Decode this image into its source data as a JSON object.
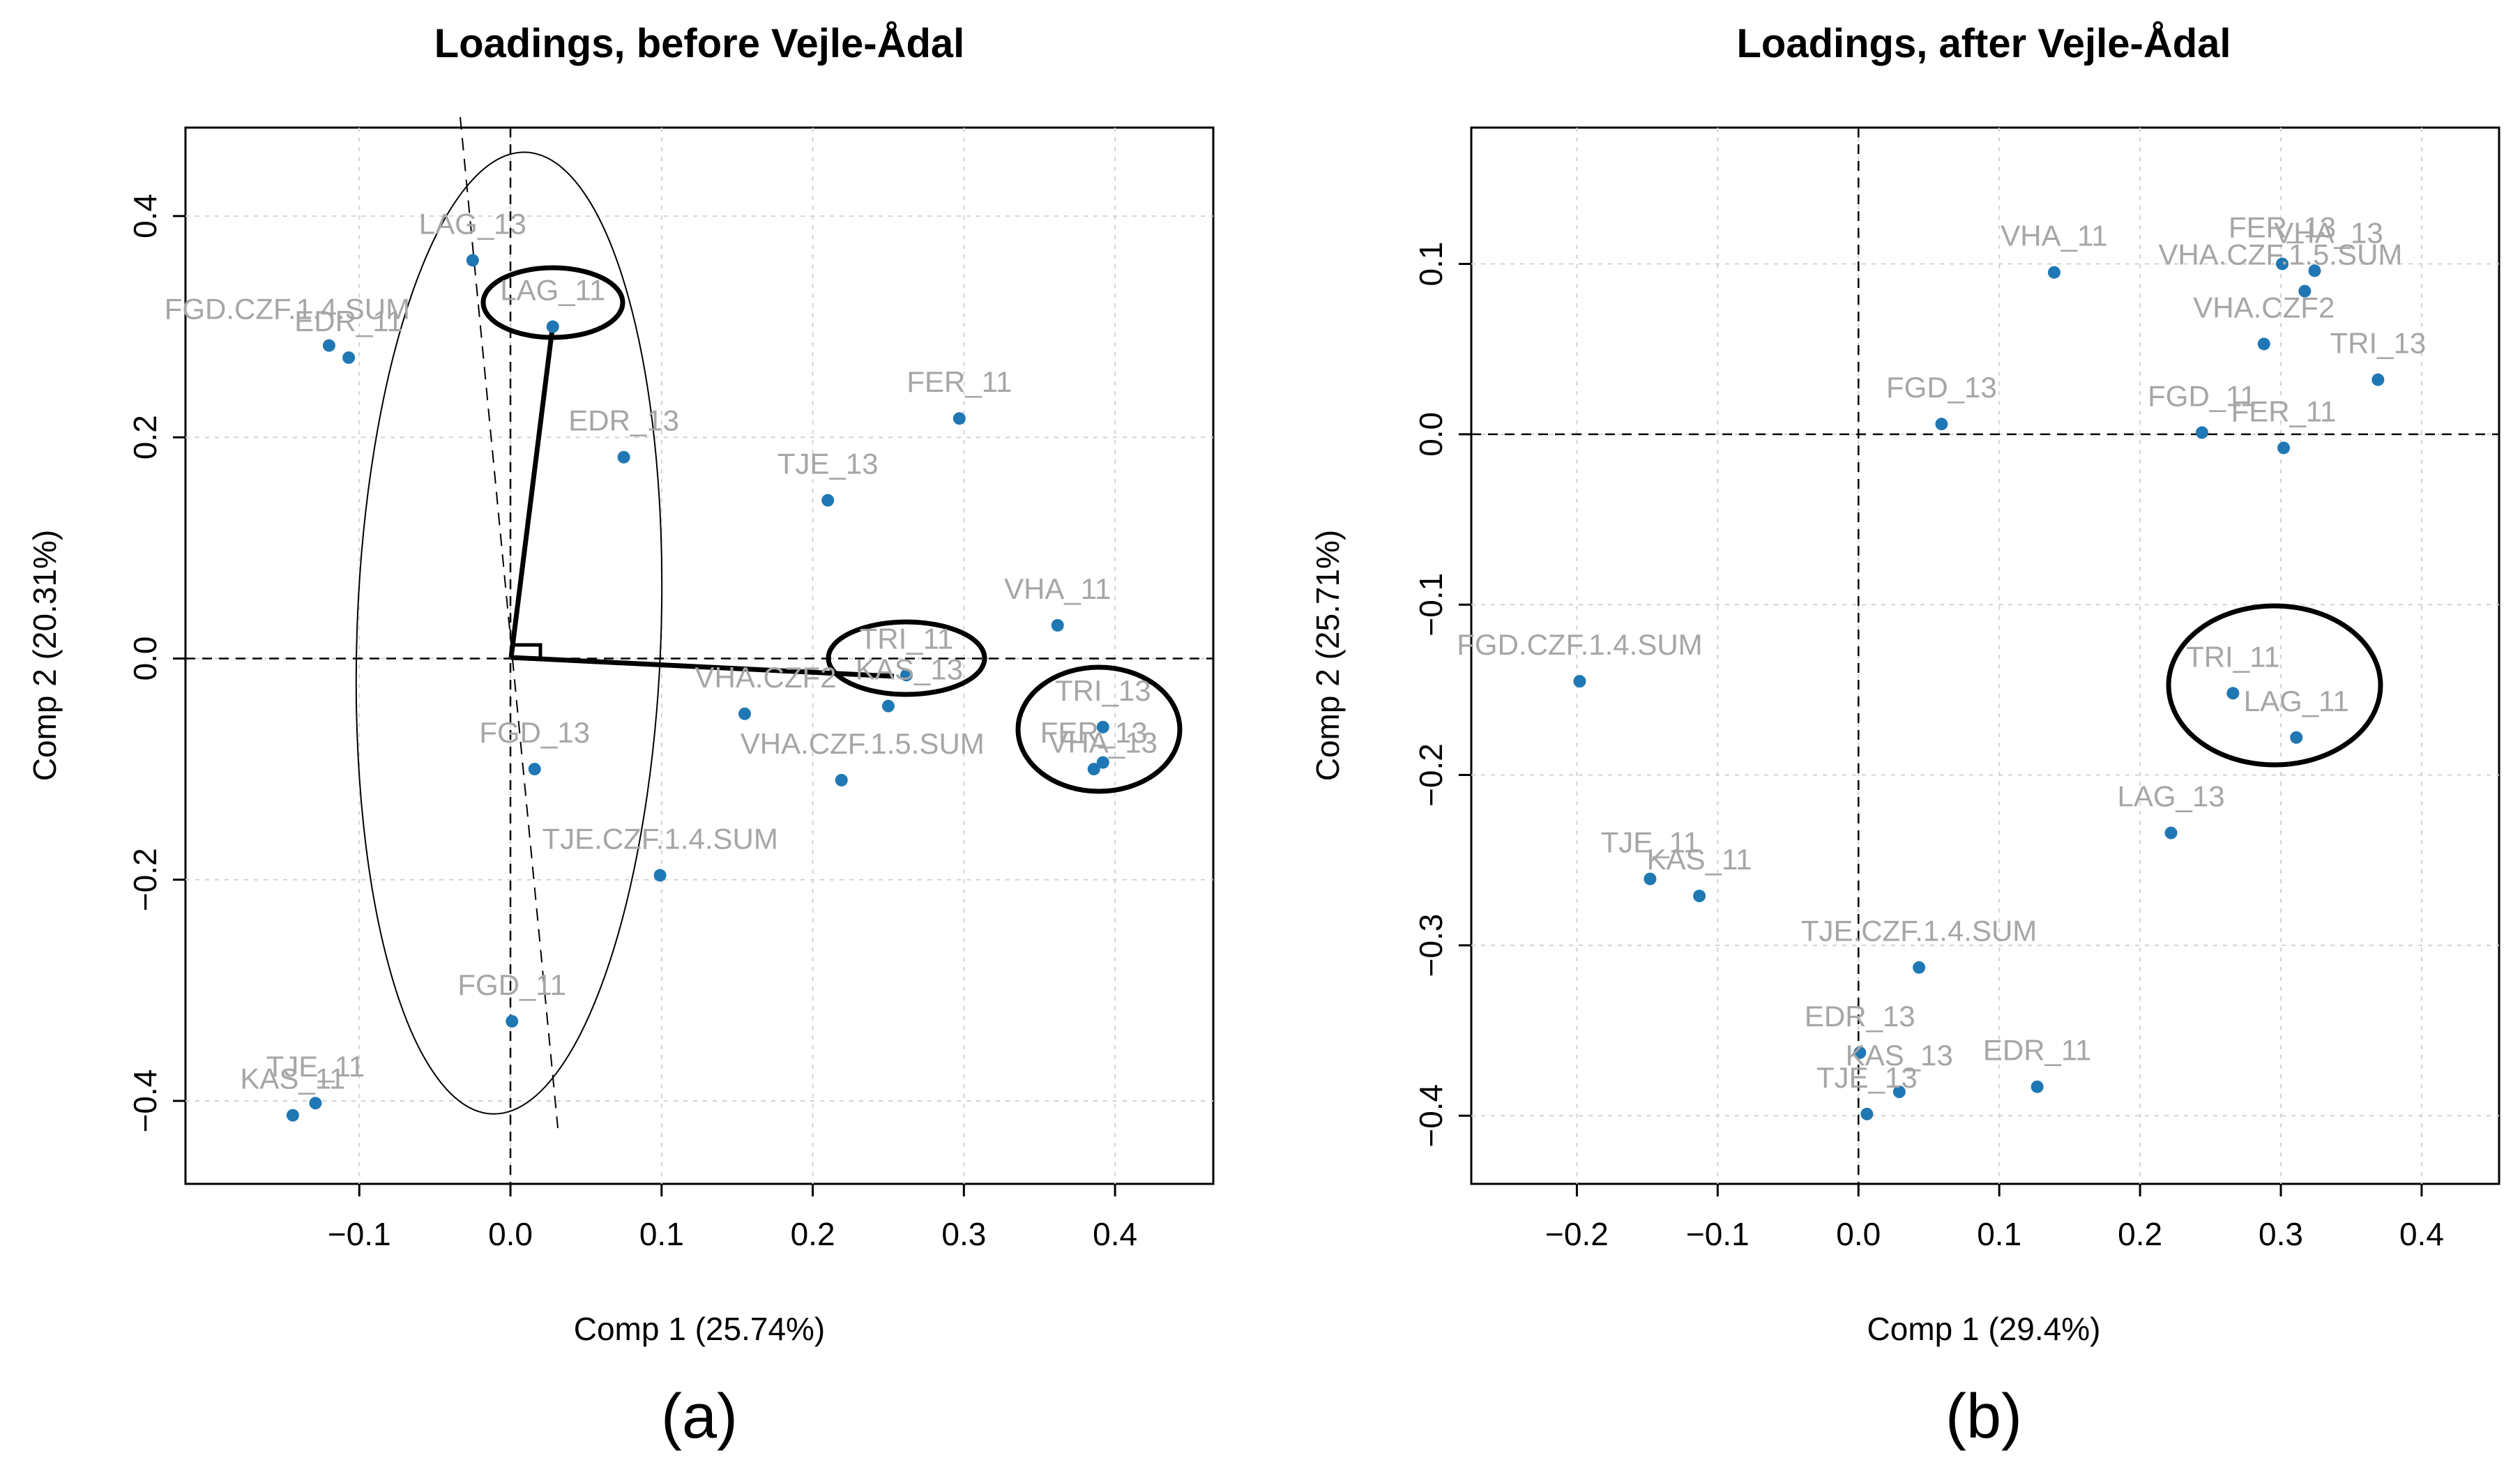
{
  "figure": {
    "panel_captions": [
      "(a)",
      "(b)"
    ]
  },
  "colors": {
    "point": "#1f78b4",
    "label": "#a6a6a6",
    "grid": "#d3d3d3",
    "axis": "#000000"
  },
  "chart_data": [
    {
      "type": "scatter",
      "title": "Loadings, before Vejle-Ådal",
      "xlabel": "Comp 1 (25.74%)",
      "ylabel": "Comp 2 (20.31%)",
      "xlim": [
        -0.215,
        0.465
      ],
      "ylim": [
        -0.475,
        0.48
      ],
      "xticks": [
        -0.1,
        0.0,
        0.1,
        0.2,
        0.3,
        0.4
      ],
      "xtick_labels": [
        "−0.1",
        "0.0",
        "0.1",
        "0.2",
        "0.3",
        "0.4"
      ],
      "yticks": [
        -0.4,
        -0.2,
        0.0,
        0.2,
        0.4
      ],
      "ytick_labels": [
        "−0.4",
        "−0.2",
        "0.0",
        "0.2",
        "0.4"
      ],
      "grid": true,
      "reference_lines": {
        "x": 0,
        "y": 0,
        "style": "dashed"
      },
      "points": [
        {
          "label": "LAG_13",
          "x": -0.025,
          "y": 0.36
        },
        {
          "label": "LAG_11",
          "x": 0.028,
          "y": 0.3
        },
        {
          "label": "FGD.CZF.1.4.SUM",
          "x": -0.12,
          "y": 0.283
        },
        {
          "label": "EDR_11",
          "x": -0.107,
          "y": 0.272
        },
        {
          "label": "EDR_13",
          "x": 0.075,
          "y": 0.182
        },
        {
          "label": "FER_11",
          "x": 0.297,
          "y": 0.217
        },
        {
          "label": "TJE_13",
          "x": 0.21,
          "y": 0.143
        },
        {
          "label": "VHA_11",
          "x": 0.362,
          "y": 0.03
        },
        {
          "label": "TRI_11",
          "x": 0.262,
          "y": -0.015
        },
        {
          "label": "KAS_13",
          "x": 0.25,
          "y": -0.043
        },
        {
          "label": "VHA.CZF2",
          "x": 0.155,
          "y": -0.05
        },
        {
          "label": "TRI_13",
          "x": 0.392,
          "y": -0.062
        },
        {
          "label": "VHA_13",
          "x": 0.392,
          "y": -0.094
        },
        {
          "label": "FER_13",
          "x": 0.386,
          "y": -0.1
        },
        {
          "label": "VHA.CZF.1.5.SUM",
          "x": 0.219,
          "y": -0.11
        },
        {
          "label": "FGD_13",
          "x": 0.016,
          "y": -0.1
        },
        {
          "label": "TJE.CZF.1.4.SUM",
          "x": 0.099,
          "y": -0.196
        },
        {
          "label": "FGD_11",
          "x": 0.001,
          "y": -0.328
        },
        {
          "label": "TJE_11",
          "x": -0.129,
          "y": -0.402
        },
        {
          "label": "KAS_11",
          "x": -0.144,
          "y": -0.413
        }
      ]
    },
    {
      "type": "scatter",
      "title": "Loadings, after Vejle-Ådal",
      "xlabel": "Comp 1 (29.4%)",
      "ylabel": "Comp 2 (25.71%)",
      "xlim": [
        -0.275,
        0.455
      ],
      "ylim": [
        -0.44,
        0.18
      ],
      "xticks": [
        -0.2,
        -0.1,
        0.0,
        0.1,
        0.2,
        0.3,
        0.4
      ],
      "xtick_labels": [
        "−0.2",
        "−0.1",
        "0.0",
        "0.1",
        "0.2",
        "0.3",
        "0.4"
      ],
      "yticks": [
        -0.4,
        -0.3,
        -0.2,
        -0.1,
        0.0,
        0.1
      ],
      "ytick_labels": [
        "−0.4",
        "−0.3",
        "−0.2",
        "−0.1",
        "0.0",
        "0.1"
      ],
      "grid": true,
      "reference_lines": {
        "x": 0,
        "y": 0,
        "style": "dashed"
      },
      "points": [
        {
          "label": "VHA_11",
          "x": 0.139,
          "y": 0.095
        },
        {
          "label": "FER_13",
          "x": 0.301,
          "y": 0.1
        },
        {
          "label": "VHA_13",
          "x": 0.324,
          "y": 0.096
        },
        {
          "label": "VHA.CZF.1.5.SUM",
          "x": 0.317,
          "y": 0.084
        },
        {
          "label": "VHA.CZF2",
          "x": 0.288,
          "y": 0.053
        },
        {
          "label": "TRI_13",
          "x": 0.369,
          "y": 0.032
        },
        {
          "label": "FGD_13",
          "x": 0.059,
          "y": 0.006
        },
        {
          "label": "FGD_11",
          "x": 0.244,
          "y": 0.001
        },
        {
          "label": "FER_11",
          "x": 0.302,
          "y": -0.008
        },
        {
          "label": "FGD.CZF.1.4.SUM",
          "x": -0.198,
          "y": -0.145
        },
        {
          "label": "TRI_11",
          "x": 0.266,
          "y": -0.152
        },
        {
          "label": "LAG_11",
          "x": 0.311,
          "y": -0.178
        },
        {
          "label": "LAG_13",
          "x": 0.222,
          "y": -0.234
        },
        {
          "label": "TJE_11",
          "x": -0.148,
          "y": -0.261
        },
        {
          "label": "KAS_11",
          "x": -0.113,
          "y": -0.271
        },
        {
          "label": "TJE.CZF.1.4.SUM",
          "x": 0.043,
          "y": -0.313
        },
        {
          "label": "EDR_13",
          "x": 0.001,
          "y": -0.363
        },
        {
          "label": "KAS_13",
          "x": 0.029,
          "y": -0.386
        },
        {
          "label": "TJE_13",
          "x": 0.006,
          "y": -0.399
        },
        {
          "label": "EDR_11",
          "x": 0.127,
          "y": -0.383
        }
      ]
    }
  ]
}
